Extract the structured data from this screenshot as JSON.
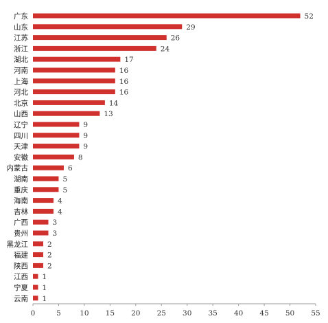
{
  "chart_data": {
    "type": "bar",
    "orientation": "horizontal",
    "categories": [
      "广东",
      "山东",
      "江苏",
      "浙江",
      "湖北",
      "河南",
      "上海",
      "河北",
      "北京",
      "山西",
      "辽宁",
      "四川",
      "天津",
      "安徽",
      "内蒙古",
      "湖南",
      "重庆",
      "海南",
      "吉林",
      "广西",
      "贵州",
      "黑龙江",
      "福建",
      "陕西",
      "江西",
      "宁夏",
      "云南"
    ],
    "values": [
      52,
      29,
      26,
      24,
      17,
      16,
      16,
      16,
      14,
      13,
      9,
      9,
      9,
      8,
      6,
      5,
      5,
      4,
      4,
      3,
      3,
      2,
      2,
      2,
      1,
      1,
      1
    ],
    "xlim": [
      0,
      55
    ],
    "xticks": [
      0,
      5,
      10,
      15,
      20,
      25,
      30,
      35,
      40,
      45,
      50,
      55
    ],
    "title": "",
    "xlabel": "",
    "ylabel": "",
    "grid": false,
    "legend": "none",
    "bar_color": "#d0312d",
    "axis_color": "#9a9a9a"
  }
}
